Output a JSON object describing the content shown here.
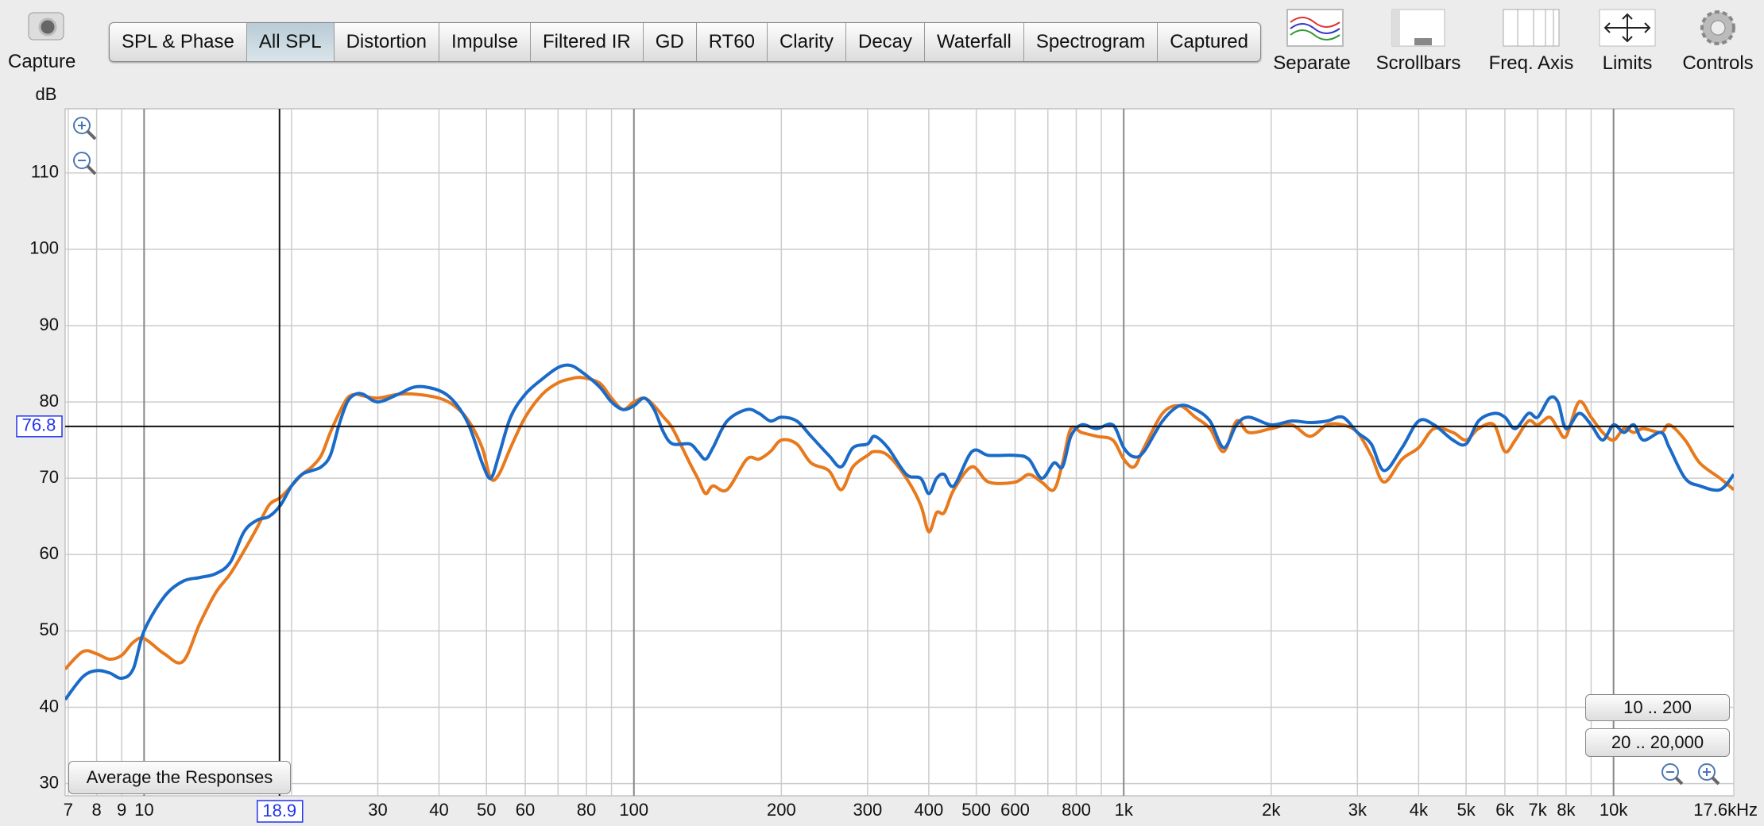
{
  "toolbar": {
    "capture": "Capture",
    "tabs": [
      "SPL & Phase",
      "All SPL",
      "Distortion",
      "Impulse",
      "Filtered IR",
      "GD",
      "RT60",
      "Clarity",
      "Decay",
      "Waterfall",
      "Spectrogram",
      "Captured"
    ],
    "selected": "All SPL",
    "tools": [
      "Separate",
      "Scrollbars",
      "Freq. Axis",
      "Limits",
      "Controls"
    ]
  },
  "chart_data": {
    "type": "line",
    "y_label": "dB",
    "xscale": "log",
    "grid": true,
    "xlim": [
      6.9,
      17600
    ],
    "ylim": [
      28.4,
      118.4
    ],
    "yticks": [
      30,
      40,
      50,
      60,
      70,
      80,
      90,
      100,
      110
    ],
    "xticks": [
      7,
      8,
      9,
      10,
      30,
      40,
      50,
      60,
      80,
      100,
      200,
      300,
      400,
      500,
      600,
      800,
      {
        "value": 1000,
        "label": "1k"
      },
      {
        "value": 2000,
        "label": "2k"
      },
      {
        "value": 3000,
        "label": "3k"
      },
      {
        "value": 4000,
        "label": "4k"
      },
      {
        "value": 5000,
        "label": "5k"
      },
      {
        "value": 6000,
        "label": "6k"
      },
      {
        "value": 7000,
        "label": "7k"
      },
      {
        "value": 8000,
        "label": "8k"
      },
      {
        "value": 10000,
        "label": "10k"
      },
      {
        "value": 17600,
        "label": "17.6kHz"
      }
    ],
    "xminor": [
      20,
      70,
      90,
      700,
      900,
      9000
    ],
    "cursor": {
      "x": 18.9,
      "y": 76.8
    },
    "x": [
      6.9,
      7.5,
      8,
      8.5,
      9,
      9.5,
      10,
      11,
      12,
      13,
      14,
      15,
      16,
      17,
      18,
      19,
      20,
      21,
      22,
      23,
      24,
      25,
      26,
      27,
      28,
      30,
      33,
      36,
      40,
      43,
      46,
      49,
      51,
      53,
      56,
      60,
      65,
      70,
      74,
      78,
      85,
      90,
      95,
      100,
      105,
      110,
      115,
      120,
      130,
      135,
      140,
      145,
      155,
      170,
      180,
      190,
      200,
      215,
      230,
      250,
      265,
      280,
      300,
      310,
      330,
      360,
      385,
      400,
      415,
      430,
      450,
      490,
      530,
      600,
      640,
      680,
      720,
      750,
      780,
      820,
      880,
      950,
      1000,
      1050,
      1100,
      1200,
      1300,
      1400,
      1500,
      1600,
      1700,
      1800,
      2000,
      2200,
      2400,
      2600,
      2800,
      3000,
      3200,
      3400,
      3700,
      4000,
      4300,
      4700,
      5000,
      5300,
      5700,
      6000,
      6300,
      6700,
      7000,
      7400,
      7700,
      8000,
      8500,
      9000,
      9500,
      10000,
      10500,
      11000,
      11500,
      12500,
      13000,
      14000,
      15000,
      16500,
      17600
    ],
    "series": [
      {
        "color": "#e8791c",
        "values": [
          45,
          47.3,
          47,
          46.3,
          46.8,
          48.5,
          49,
          47,
          46,
          51,
          55,
          57.5,
          60.5,
          63.5,
          66.5,
          67.5,
          69,
          70.5,
          71.5,
          73,
          76,
          78.5,
          80.5,
          81,
          80.8,
          80.5,
          81,
          81,
          80.5,
          79.5,
          77.5,
          74,
          70,
          70.5,
          74,
          78,
          81,
          82.5,
          83,
          83.2,
          82.5,
          80.5,
          79,
          80,
          80.5,
          79.5,
          78,
          76.5,
          72,
          70,
          68,
          69,
          68.5,
          72.5,
          72.5,
          73.5,
          75,
          74.5,
          72,
          71,
          68.5,
          71.5,
          73,
          73.5,
          73,
          70,
          66.5,
          63,
          65.5,
          65.5,
          68.5,
          71.5,
          69.5,
          69.5,
          70.5,
          69.5,
          68.5,
          72,
          76.5,
          76,
          75.5,
          75,
          72.5,
          71.5,
          74,
          78.5,
          79.5,
          78,
          76.5,
          73.5,
          77.5,
          76,
          76.5,
          77,
          75.5,
          77,
          77,
          76,
          73,
          69.5,
          72.5,
          74,
          76.5,
          76,
          75,
          76.5,
          77,
          73.5,
          75,
          77.5,
          77,
          78,
          76.5,
          75.5,
          80,
          78,
          76,
          75,
          76.5,
          76,
          76.5,
          76,
          77,
          75,
          72,
          70,
          68.5
        ]
      },
      {
        "color": "#1a6ac8",
        "values": [
          41,
          44,
          44.8,
          44.5,
          43.8,
          45,
          50,
          54.5,
          56.5,
          57,
          57.5,
          59,
          63,
          64.5,
          65,
          66.5,
          69,
          70.5,
          71,
          71.5,
          73,
          77,
          80,
          81,
          81,
          80,
          81,
          82,
          81.5,
          80,
          77,
          72,
          70,
          73,
          78,
          81,
          83,
          84.5,
          84.8,
          84,
          82,
          80,
          79,
          79.5,
          80.5,
          79,
          76,
          74.5,
          74.5,
          73.5,
          72.5,
          74,
          77.5,
          79,
          78.5,
          77.5,
          78,
          77.5,
          75.5,
          73,
          71.5,
          74,
          74.5,
          75.5,
          74,
          70.5,
          70,
          68,
          70,
          70.5,
          69,
          73.5,
          73,
          73,
          72.5,
          70,
          72,
          71.5,
          75.5,
          77,
          76.5,
          77,
          74,
          72.8,
          73.5,
          77.5,
          79.5,
          79,
          77.5,
          74,
          77,
          78,
          77,
          77.5,
          77.3,
          77.5,
          78,
          76,
          74.5,
          71,
          74,
          77.5,
          77,
          75,
          74.5,
          77.5,
          78.5,
          78,
          76.5,
          78.5,
          78,
          80.5,
          80,
          76.5,
          78.5,
          77,
          75,
          77,
          76,
          77,
          75,
          76,
          74,
          70,
          69,
          68.5,
          70.5
        ]
      }
    ]
  },
  "buttons": {
    "average": "Average the Responses",
    "ranges": [
      "10 .. 200",
      "20 .. 20,000"
    ]
  }
}
